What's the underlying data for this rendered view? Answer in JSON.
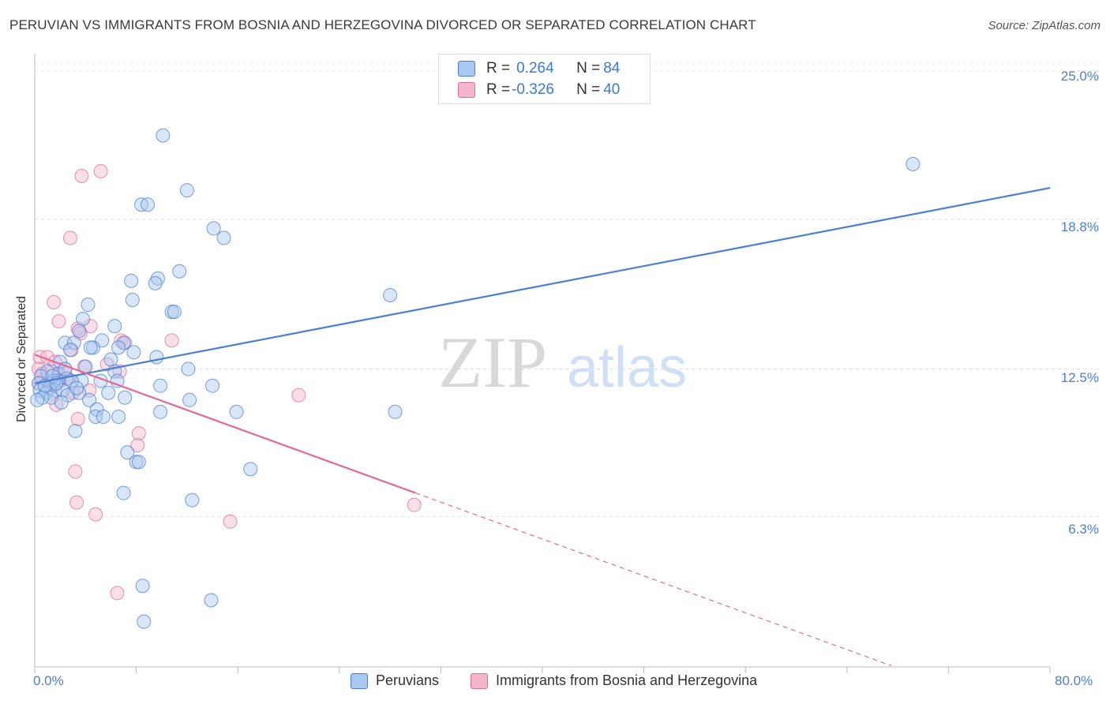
{
  "title": "PERUVIAN VS IMMIGRANTS FROM BOSNIA AND HERZEGOVINA DIVORCED OR SEPARATED CORRELATION CHART",
  "source": "Source: ZipAtlas.com",
  "watermark": {
    "zip": "ZIP",
    "atlas": "atlas"
  },
  "colors": {
    "blue": "#4a7fd4",
    "blue_fill": "#a9c8f0",
    "pink": "#e26b96",
    "pink_fill": "#f4b6cb",
    "grid": "#e3e3e3",
    "axis": "#bbbbbb"
  },
  "legend": {
    "rows": [
      {
        "r_label": "R = ",
        "r_value": "0.264",
        "n_label": "N = ",
        "n_value": "84",
        "color": "#a9c8f0",
        "border": "#4a7fd4"
      },
      {
        "r_label": "R = ",
        "r_value": "-0.326",
        "n_label": "N = ",
        "n_value": "40",
        "color": "#f4b6cb",
        "border": "#e26b96"
      }
    ]
  },
  "chart_data": {
    "type": "scatter",
    "title": "PERUVIAN VS IMMIGRANTS FROM BOSNIA AND HERZEGOVINA DIVORCED OR SEPARATED CORRELATION CHART",
    "xlabel": "",
    "ylabel": "Divorced or Separated",
    "x_tick_labels": [
      "0.0%",
      "80.0%"
    ],
    "y_tick_labels": [
      "25.0%",
      "18.8%",
      "12.5%",
      "6.3%"
    ],
    "y_ticks": [
      25.0,
      18.8,
      12.5,
      6.3
    ],
    "xlim": [
      0,
      80
    ],
    "ylim": [
      0,
      25.6
    ],
    "grid": true,
    "series": [
      {
        "name": "Peruvians",
        "color": "#4a7fd4",
        "trend": {
          "x0": 0,
          "y0": 11.9,
          "x1": 80,
          "y1": 20.1
        },
        "points": [
          [
            10.1,
            22.3
          ],
          [
            69.2,
            21.1
          ],
          [
            12.0,
            20.0
          ],
          [
            8.4,
            19.4
          ],
          [
            8.9,
            19.4
          ],
          [
            14.1,
            18.4
          ],
          [
            14.9,
            18.0
          ],
          [
            11.4,
            16.6
          ],
          [
            9.7,
            16.3
          ],
          [
            7.6,
            16.2
          ],
          [
            9.5,
            16.1
          ],
          [
            28.0,
            15.6
          ],
          [
            7.7,
            15.4
          ],
          [
            4.2,
            15.2
          ],
          [
            10.8,
            14.9
          ],
          [
            11.0,
            14.9
          ],
          [
            6.3,
            14.3
          ],
          [
            3.8,
            14.6
          ],
          [
            3.5,
            14.1
          ],
          [
            5.3,
            13.7
          ],
          [
            2.4,
            13.6
          ],
          [
            3.1,
            13.6
          ],
          [
            7.0,
            13.6
          ],
          [
            6.6,
            13.4
          ],
          [
            4.6,
            13.4
          ],
          [
            4.4,
            13.4
          ],
          [
            2.8,
            13.3
          ],
          [
            7.8,
            13.2
          ],
          [
            9.6,
            13.0
          ],
          [
            6.0,
            12.9
          ],
          [
            2.0,
            12.8
          ],
          [
            4.0,
            12.6
          ],
          [
            12.1,
            12.5
          ],
          [
            6.3,
            12.4
          ],
          [
            1.0,
            12.4
          ],
          [
            1.9,
            12.3
          ],
          [
            0.5,
            12.2
          ],
          [
            2.5,
            12.1
          ],
          [
            6.5,
            12.0
          ],
          [
            1.8,
            12.0
          ],
          [
            3.7,
            12.0
          ],
          [
            5.2,
            12.0
          ],
          [
            1.5,
            12.0
          ],
          [
            0.3,
            11.9
          ],
          [
            14.0,
            11.8
          ],
          [
            9.9,
            11.8
          ],
          [
            1.1,
            11.7
          ],
          [
            1.6,
            11.6
          ],
          [
            0.4,
            11.6
          ],
          [
            2.2,
            11.6
          ],
          [
            0.9,
            11.5
          ],
          [
            3.5,
            11.5
          ],
          [
            2.6,
            11.4
          ],
          [
            1.3,
            11.3
          ],
          [
            0.6,
            11.3
          ],
          [
            7.1,
            11.3
          ],
          [
            0.2,
            11.2
          ],
          [
            4.3,
            11.2
          ],
          [
            12.2,
            11.2
          ],
          [
            2.1,
            11.1
          ],
          [
            4.9,
            10.8
          ],
          [
            15.9,
            10.7
          ],
          [
            9.9,
            10.7
          ],
          [
            28.4,
            10.7
          ],
          [
            4.8,
            10.5
          ],
          [
            6.6,
            10.5
          ],
          [
            5.4,
            10.5
          ],
          [
            3.2,
            9.9
          ],
          [
            7.3,
            9.0
          ],
          [
            8.0,
            8.6
          ],
          [
            8.2,
            8.6
          ],
          [
            17.0,
            8.3
          ],
          [
            7.0,
            7.3
          ],
          [
            12.4,
            7.0
          ],
          [
            8.5,
            3.4
          ],
          [
            13.9,
            2.8
          ],
          [
            8.6,
            1.9
          ],
          [
            1.4,
            12.2
          ],
          [
            2.9,
            12.0
          ],
          [
            0.8,
            11.8
          ],
          [
            1.7,
            11.9
          ],
          [
            3.3,
            11.7
          ],
          [
            5.8,
            11.5
          ],
          [
            2.4,
            12.5
          ]
        ]
      },
      {
        "name": "Immigrants from Bosnia and Herzegovina",
        "color": "#e26b96",
        "trend": {
          "x0": 0,
          "y0": 13.1,
          "x1": 30,
          "y1": 7.3,
          "dash_to_x": 67.5
        },
        "points": [
          [
            5.2,
            20.8
          ],
          [
            3.7,
            20.6
          ],
          [
            2.8,
            18.0
          ],
          [
            1.5,
            15.3
          ],
          [
            1.9,
            14.5
          ],
          [
            4.4,
            14.3
          ],
          [
            3.4,
            14.2
          ],
          [
            3.6,
            14.0
          ],
          [
            6.8,
            13.7
          ],
          [
            10.8,
            13.7
          ],
          [
            7.1,
            13.6
          ],
          [
            2.9,
            13.3
          ],
          [
            0.4,
            13.0
          ],
          [
            1.0,
            13.0
          ],
          [
            1.6,
            12.8
          ],
          [
            5.7,
            12.7
          ],
          [
            3.9,
            12.6
          ],
          [
            0.3,
            12.5
          ],
          [
            2.4,
            12.5
          ],
          [
            6.7,
            12.4
          ],
          [
            1.3,
            12.4
          ],
          [
            0.6,
            12.3
          ],
          [
            1.9,
            12.2
          ],
          [
            2.6,
            12.1
          ],
          [
            0.4,
            11.9
          ],
          [
            1.5,
            11.8
          ],
          [
            4.3,
            11.6
          ],
          [
            3.0,
            11.5
          ],
          [
            20.8,
            11.4
          ],
          [
            1.7,
            11.0
          ],
          [
            3.4,
            10.4
          ],
          [
            8.2,
            9.8
          ],
          [
            8.1,
            9.3
          ],
          [
            3.2,
            8.2
          ],
          [
            3.3,
            6.9
          ],
          [
            29.9,
            6.8
          ],
          [
            4.8,
            6.4
          ],
          [
            15.4,
            6.1
          ],
          [
            6.5,
            3.1
          ],
          [
            2.0,
            12.0
          ]
        ]
      }
    ]
  },
  "bottom_legend": {
    "series1": "Peruvians",
    "series2": "Immigrants from Bosnia and Herzegovina"
  }
}
